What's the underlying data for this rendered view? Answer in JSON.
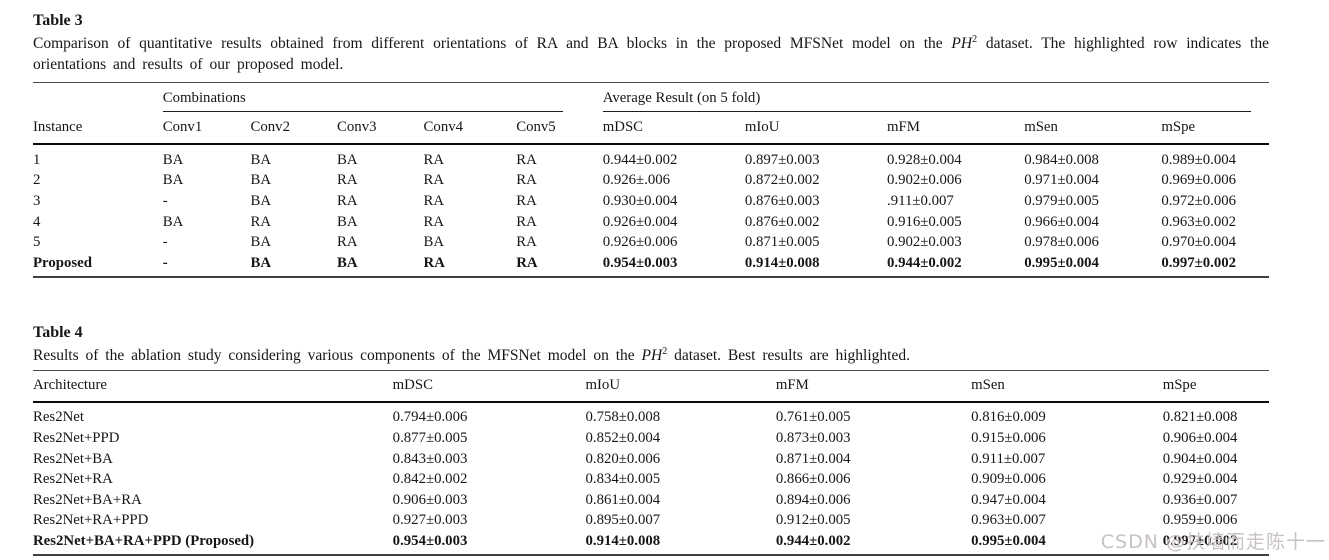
{
  "page": {
    "background": "#ffffff",
    "text_color": "#161616"
  },
  "watermark": {
    "text": "CSDN @扶墙而走陈十一",
    "color": "#c9c2c2"
  },
  "table3": {
    "label": "Table 3",
    "caption": {
      "pre": "Comparison of quantitative results obtained from different orientations of RA and BA blocks in the proposed MFSNet model on the ",
      "dataset_italic": "PH",
      "dataset_sup": "2",
      "post": " dataset. The highlighted row indicates the orientations and results of our proposed model."
    },
    "group_headers": {
      "combinations": "Combinations",
      "average_result": "Average Result (on 5 fold)"
    },
    "columns": [
      "Instance",
      "Conv1",
      "Conv2",
      "Conv3",
      "Conv4",
      "Conv5",
      "mDSC",
      "mIoU",
      "mFM",
      "mSen",
      "mSpe"
    ],
    "rows": [
      {
        "instance": "1",
        "convs": [
          "BA",
          "BA",
          "BA",
          "RA",
          "RA"
        ],
        "results": [
          "0.944±0.002",
          "0.897±0.003",
          "0.928±0.004",
          "0.984±0.008",
          "0.989±0.004"
        ],
        "bold": false
      },
      {
        "instance": "2",
        "convs": [
          "BA",
          "BA",
          "RA",
          "RA",
          "RA"
        ],
        "results": [
          "0.926±.006",
          "0.872±0.002",
          "0.902±0.006",
          "0.971±0.004",
          "0.969±0.006"
        ],
        "bold": false
      },
      {
        "instance": "3",
        "convs": [
          "-",
          "BA",
          "RA",
          "RA",
          "RA"
        ],
        "results": [
          "0.930±0.004",
          "0.876±0.003",
          ".911±0.007",
          "0.979±0.005",
          "0.972±0.006"
        ],
        "bold": false
      },
      {
        "instance": "4",
        "convs": [
          "BA",
          "RA",
          "BA",
          "RA",
          "RA"
        ],
        "results": [
          "0.926±0.004",
          "0.876±0.002",
          "0.916±0.005",
          "0.966±0.004",
          "0.963±0.002"
        ],
        "bold": false
      },
      {
        "instance": "5",
        "convs": [
          "-",
          "BA",
          "RA",
          "BA",
          "RA"
        ],
        "results": [
          "0.926±0.006",
          "0.871±0.005",
          "0.902±0.003",
          "0.978±0.006",
          "0.970±0.004"
        ],
        "bold": false
      },
      {
        "instance": "Proposed",
        "convs": [
          "-",
          "BA",
          "BA",
          "RA",
          "RA"
        ],
        "results": [
          "0.954±0.003",
          "0.914±0.008",
          "0.944±0.002",
          "0.995±0.004",
          "0.997±0.002"
        ],
        "bold": true
      }
    ]
  },
  "table4": {
    "label": "Table 4",
    "caption": {
      "pre": "Results of the ablation study considering various components of the MFSNet model on the ",
      "dataset_italic": "PH",
      "dataset_sup": "2",
      "post": " dataset. Best results are highlighted."
    },
    "columns": [
      "Architecture",
      "mDSC",
      "mIoU",
      "mFM",
      "mSen",
      "mSpe"
    ],
    "rows": [
      {
        "arch": "Res2Net",
        "values": [
          "0.794±0.006",
          "0.758±0.008",
          "0.761±0.005",
          "0.816±0.009",
          "0.821±0.008"
        ],
        "bold": false
      },
      {
        "arch": "Res2Net+PPD",
        "values": [
          "0.877±0.005",
          "0.852±0.004",
          "0.873±0.003",
          "0.915±0.006",
          "0.906±0.004"
        ],
        "bold": false
      },
      {
        "arch": "Res2Net+BA",
        "values": [
          "0.843±0.003",
          "0.820±0.006",
          "0.871±0.004",
          "0.911±0.007",
          "0.904±0.004"
        ],
        "bold": false
      },
      {
        "arch": "Res2Net+RA",
        "values": [
          "0.842±0.002",
          "0.834±0.005",
          "0.866±0.006",
          "0.909±0.006",
          "0.929±0.004"
        ],
        "bold": false
      },
      {
        "arch": "Res2Net+BA+RA",
        "values": [
          "0.906±0.003",
          "0.861±0.004",
          "0.894±0.006",
          "0.947±0.004",
          "0.936±0.007"
        ],
        "bold": false
      },
      {
        "arch": "Res2Net+RA+PPD",
        "values": [
          "0.927±0.003",
          "0.895±0.007",
          "0.912±0.005",
          "0.963±0.007",
          "0.959±0.006"
        ],
        "bold": false
      },
      {
        "arch": "Res2Net+BA+RA+PPD (Proposed)",
        "values": [
          "0.954±0.003",
          "0.914±0.008",
          "0.944±0.002",
          "0.995±0.004",
          "0.997±0.002"
        ],
        "bold": true
      }
    ]
  }
}
